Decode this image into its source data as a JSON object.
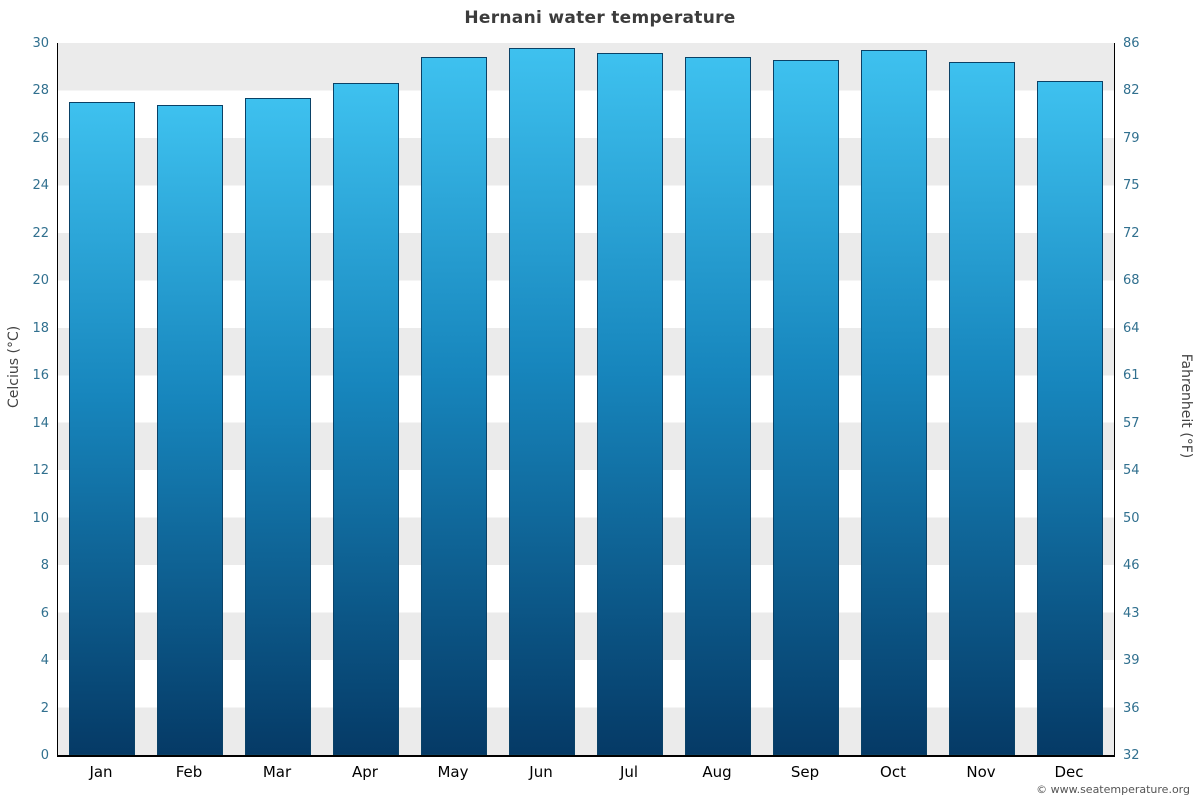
{
  "title": "Hernani water temperature",
  "footer": "© www.seatemperature.org",
  "chart_data": {
    "type": "bar",
    "title": "Hernani water temperature",
    "categories": [
      "Jan",
      "Feb",
      "Mar",
      "Apr",
      "May",
      "Jun",
      "Jul",
      "Aug",
      "Sep",
      "Oct",
      "Nov",
      "Dec"
    ],
    "values": [
      27.5,
      27.4,
      27.7,
      28.3,
      29.4,
      29.8,
      29.6,
      29.4,
      29.3,
      29.7,
      29.2,
      28.4
    ],
    "ylabel_left": "Celcius (°C)",
    "ylabel_right": "Fahrenheit (°F)",
    "ylim": [
      0,
      30
    ],
    "celsius_ticks": [
      0,
      2,
      4,
      6,
      8,
      10,
      12,
      14,
      16,
      18,
      20,
      22,
      24,
      26,
      28,
      30
    ],
    "fahrenheit_ticks": [
      32,
      36,
      39,
      43,
      46,
      50,
      54,
      57,
      61,
      64,
      68,
      72,
      75,
      79,
      82,
      86
    ],
    "grid": "banded-horizontal",
    "legend": "none",
    "band_color_dark": "#ebebeb",
    "band_color_light": "#ffffff",
    "bar_gradient_top": "#3ec1ef",
    "bar_gradient_mid": "#1786bd",
    "bar_gradient_bottom": "#053a66",
    "bar_border_color": "#0a4166"
  }
}
